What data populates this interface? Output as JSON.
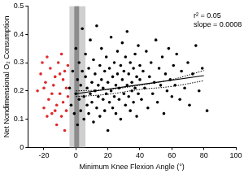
{
  "chart_data": {
    "type": "scatter",
    "xlabel": "Minimum Knee Flexion Angle (°)",
    "ylabel": "Net Nondimensional O₂ Consumption",
    "annotations": [
      "r² = 0.05",
      "slope = 0.0008"
    ],
    "xlim": [
      -30,
      100
    ],
    "xticks": [
      -20,
      0,
      20,
      40,
      60,
      80,
      100
    ],
    "ylim": [
      0,
      0.5
    ],
    "yticks": [
      0,
      0.1,
      0.2,
      0.3,
      0.4,
      0.5
    ],
    "grid": false,
    "bands": [
      {
        "x": [
          -4,
          6
        ],
        "color": "#cfcfcf"
      },
      {
        "x": [
          -1,
          2
        ],
        "color": "#8c8c8c"
      }
    ],
    "series": [
      {
        "type": "scatter",
        "color": "#e0282a",
        "marker": "circle",
        "x": [
          -24,
          -22,
          -21,
          -20,
          -19,
          -18,
          -17,
          -16,
          -15,
          -14,
          -13,
          -12,
          -11,
          -10,
          -9,
          -8,
          -8,
          -7,
          -7,
          -6,
          -6,
          -12,
          -18,
          -20,
          -15,
          -10,
          -5,
          -5,
          -13,
          -9
        ],
        "y": [
          0.2,
          0.26,
          0.3,
          0.14,
          0.23,
          0.32,
          0.17,
          0.28,
          0.12,
          0.22,
          0.25,
          0.15,
          0.3,
          0.19,
          0.11,
          0.24,
          0.16,
          0.27,
          0.06,
          0.13,
          0.21,
          0.08,
          0.11,
          0.21,
          0.19,
          0.26,
          0.18,
          0.29,
          0.13,
          0.33
        ]
      },
      {
        "type": "scatter",
        "color": "#000000",
        "marker": "circle",
        "x": [
          -4,
          -3,
          -2,
          -1,
          0,
          0,
          1,
          1,
          2,
          2,
          3,
          3,
          4,
          4,
          5,
          5,
          6,
          6,
          7,
          7,
          8,
          8,
          9,
          9,
          10,
          10,
          11,
          11,
          12,
          12,
          13,
          13,
          14,
          14,
          15,
          15,
          16,
          16,
          17,
          17,
          18,
          18,
          19,
          19,
          20,
          20,
          21,
          21,
          22,
          22,
          23,
          23,
          24,
          24,
          25,
          25,
          26,
          26,
          27,
          27,
          28,
          28,
          29,
          29,
          30,
          30,
          31,
          31,
          32,
          32,
          33,
          33,
          34,
          34,
          35,
          35,
          36,
          36,
          37,
          37,
          38,
          38,
          39,
          39,
          40,
          40,
          41,
          42,
          43,
          44,
          45,
          46,
          47,
          48,
          49,
          50,
          51,
          52,
          53,
          54,
          55,
          56,
          57,
          58,
          59,
          60,
          61,
          62,
          63,
          65,
          66,
          68,
          70,
          71,
          73,
          75,
          77,
          79,
          82
        ],
        "y": [
          0.21,
          0.15,
          0.27,
          0.12,
          0.19,
          0.35,
          0.24,
          0.08,
          0.17,
          0.3,
          0.22,
          0.13,
          0.27,
          0.42,
          0.18,
          0.1,
          0.25,
          0.33,
          0.15,
          0.21,
          0.28,
          0.12,
          0.19,
          0.38,
          0.23,
          0.16,
          0.31,
          0.09,
          0.2,
          0.26,
          0.14,
          0.43,
          0.22,
          0.18,
          0.29,
          0.11,
          0.24,
          0.35,
          0.17,
          0.21,
          0.27,
          0.13,
          0.32,
          0.19,
          0.23,
          0.06,
          0.16,
          0.28,
          0.2,
          0.39,
          0.25,
          0.14,
          0.3,
          0.18,
          0.22,
          0.12,
          0.26,
          0.34,
          0.17,
          0.21,
          0.29,
          0.1,
          0.24,
          0.37,
          0.19,
          0.27,
          0.15,
          0.32,
          0.22,
          0.41,
          0.18,
          0.26,
          0.13,
          0.3,
          0.23,
          0.2,
          0.28,
          0.16,
          0.33,
          0.21,
          0.25,
          0.11,
          0.19,
          0.36,
          0.24,
          0.29,
          0.17,
          0.27,
          0.21,
          0.34,
          0.14,
          0.25,
          0.3,
          0.19,
          0.23,
          0.38,
          0.16,
          0.28,
          0.22,
          0.32,
          0.12,
          0.26,
          0.2,
          0.35,
          0.24,
          0.18,
          0.29,
          0.22,
          0.33,
          0.17,
          0.27,
          0.21,
          0.3,
          0.15,
          0.26,
          0.36,
          0.2,
          0.28,
          0.13
        ]
      },
      {
        "type": "line",
        "color": "#000000",
        "line_style": "solid",
        "x": [
          0,
          80
        ],
        "y": [
          0.19,
          0.254
        ]
      },
      {
        "type": "line",
        "color": "#000000",
        "line_style": "dotted",
        "x": [
          0,
          20,
          40,
          60,
          80
        ],
        "y": [
          0.2,
          0.205,
          0.22,
          0.24,
          0.272
        ]
      },
      {
        "type": "line",
        "color": "#000000",
        "line_style": "dotted",
        "x": [
          0,
          20,
          40,
          60,
          80
        ],
        "y": [
          0.18,
          0.188,
          0.205,
          0.216,
          0.236
        ]
      }
    ]
  }
}
